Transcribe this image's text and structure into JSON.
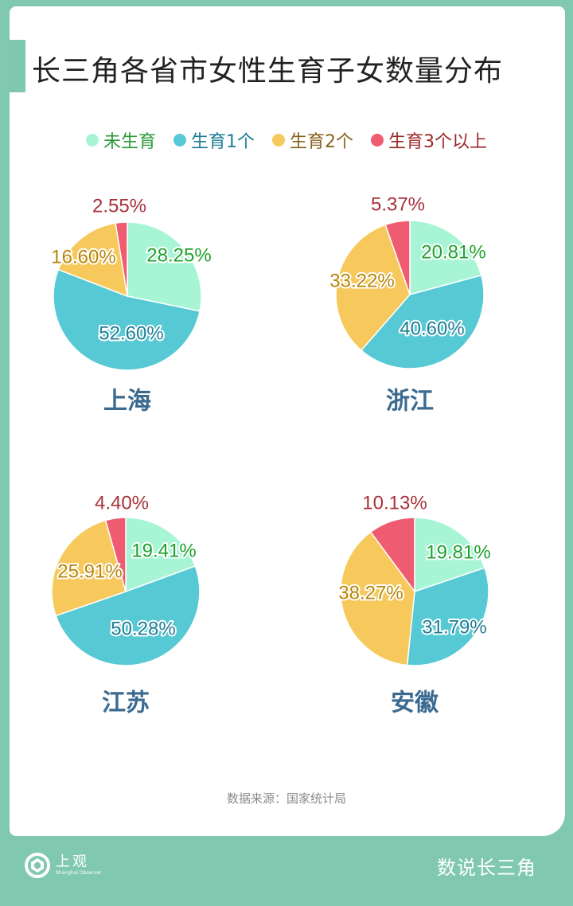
{
  "title": "长三角各省市女性生育子女数量分布",
  "legend": [
    {
      "label": "未生育",
      "color": "#a8f5d6",
      "text_color": "#2c9a3c"
    },
    {
      "label": "生育1个",
      "color": "#56c9d4",
      "text_color": "#1d7d96"
    },
    {
      "label": "生育2个",
      "color": "#f7c95c",
      "text_color": "#8a6320"
    },
    {
      "label": "生育3个以上",
      "color": "#ef5b70",
      "text_color": "#9b2a2a"
    }
  ],
  "chart_data": [
    {
      "type": "pie",
      "name": "上海",
      "labels": [
        "未生育",
        "生育1个",
        "生育2个",
        "生育3个以上"
      ],
      "values": [
        28.25,
        52.6,
        16.6,
        2.55
      ],
      "value_labels": [
        "28.25%",
        "52.60%",
        "16.60%",
        "2.55%"
      ]
    },
    {
      "type": "pie",
      "name": "浙江",
      "labels": [
        "未生育",
        "生育1个",
        "生育2个",
        "生育3个以上"
      ],
      "values": [
        20.81,
        40.6,
        33.22,
        5.37
      ],
      "value_labels": [
        "20.81%",
        "40.60%",
        "33.22%",
        "5.37%"
      ]
    },
    {
      "type": "pie",
      "name": "江苏",
      "labels": [
        "未生育",
        "生育1个",
        "生育2个",
        "生育3个以上"
      ],
      "values": [
        19.41,
        50.28,
        25.91,
        4.4
      ],
      "value_labels": [
        "19.41%",
        "50.28%",
        "25.91%",
        "4.40%"
      ]
    },
    {
      "type": "pie",
      "name": "安徽",
      "labels": [
        "未生育",
        "生育1个",
        "生育2个",
        "生育3个以上"
      ],
      "values": [
        19.81,
        31.79,
        38.27,
        10.13
      ],
      "value_labels": [
        "19.81%",
        "31.79%",
        "38.27%",
        "10.13%"
      ]
    }
  ],
  "colors": {
    "label_green": "#1fa02e",
    "label_teal": "#1d7d96",
    "label_gold": "#b8860b",
    "label_red": "#a8323a",
    "province_name": "#3a6a90"
  },
  "source": "数据来源：国家统计局",
  "brand": {
    "name": "上观",
    "sub": "Shanghai Observer"
  },
  "series_name": "数说长三角"
}
